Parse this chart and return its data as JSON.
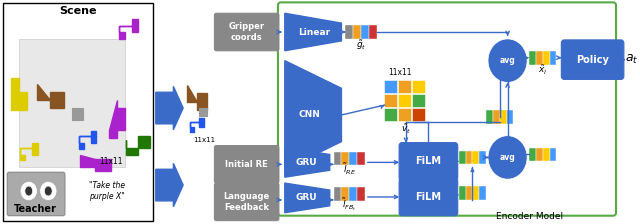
{
  "fig_width": 6.4,
  "fig_height": 2.24,
  "dpi": 100,
  "bg_color": "#ffffff",
  "blue": "#3a6bc9",
  "gray_box": "#888888",
  "green_border": "#55aa44",
  "scene_title": "Scene",
  "teacher_label": "Teacher",
  "teacher_quote": "\"Take the\npurple X\"",
  "encoder_label": "Encoder Model",
  "label_11x11_scene": "11x11",
  "label_11x11_cnn": "11x11",
  "policy_label": "Policy",
  "avg_label": "avg",
  "gripper_label": "Gripper\ncoords",
  "linear_label": "Linear",
  "cnn_label": "CNN",
  "initial_re_label": "Initial RE",
  "lang_fb_label": "Language\nFeedback",
  "gru_label": "GRU",
  "film_label": "FiLM",
  "g_tilde": "$\\tilde{g}_t$",
  "v_tilde": "$\\tilde{v}_t$",
  "l_re": "$\\tilde{l}_{RE}$",
  "l_fb": "$\\tilde{l}_{FB_t}$",
  "x_tilde": "$\\tilde{x}_l$",
  "a_t": "$a_t$",
  "bar_colors_long": [
    "#888888",
    "#f0a020",
    "#4499ff",
    "#cc3333"
  ],
  "bar_colors_short": [
    "#44aa44",
    "#f0a020",
    "#ffcc00",
    "#4499ff"
  ],
  "grid_colors": [
    [
      "#4499ff",
      "#f0a020",
      "#ffcc00"
    ],
    [
      "#f0a020",
      "#ffcc00",
      "#44aa44"
    ],
    [
      "#44aa44",
      "#f0a020",
      "#cc4400"
    ]
  ]
}
